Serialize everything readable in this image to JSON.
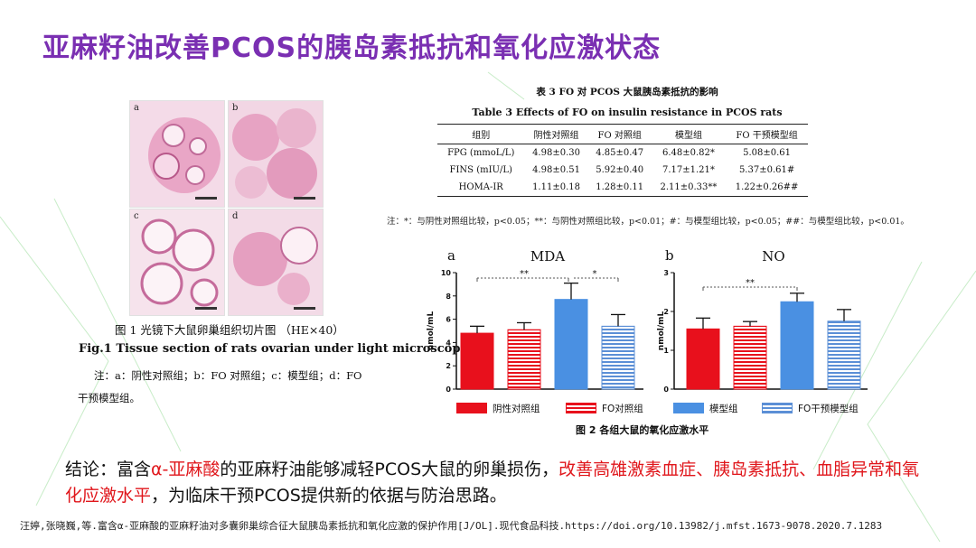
{
  "title": "亚麻籽油改善PCOS的胰岛素抵抗和氧化应激状态",
  "figure1": {
    "panel_labels": [
      "a",
      "b",
      "c",
      "d"
    ],
    "caption_cn": "图 1 光镜下大鼠卵巢组织切片图 （HE×40）",
    "caption_en": "Fig.1 Tissue section of rats ovarian under light microscope",
    "note_line1": "注：a：阴性对照组；b：FO 对照组；c：模型组；d：FO",
    "note_line2": "干预模型组。"
  },
  "table3": {
    "title_cn": "表 3 FO 对 PCOS 大鼠胰岛素抵抗的影响",
    "title_en": "Table 3 Effects of FO on insulin resistance in PCOS rats",
    "headers": [
      "组别",
      "阴性对照组",
      "FO 对照组",
      "模型组",
      "FO 干预模型组"
    ],
    "rows": [
      {
        "label": "FPG (mmoL/L)",
        "c1": "4.98±0.30",
        "c2": "4.85±0.47",
        "c3": "6.48±0.82*",
        "c4": "5.08±0.61"
      },
      {
        "label": "FINS (mIU/L)",
        "c1": "4.98±0.51",
        "c2": "5.92±0.40",
        "c3": "7.17±1.21*",
        "c4": "5.37±0.61#"
      },
      {
        "label": "HOMA-IR",
        "c1": "1.11±0.18",
        "c2": "1.28±0.11",
        "c3": "2.11±0.33**",
        "c4": "1.22±0.26##"
      }
    ],
    "note": "注：*：与阴性对照组比较，p<0.05；**：与阴性对照组比较，p<0.01；#：与模型组比较，p<0.05；##：与模型组比较，p<0.01。"
  },
  "chart_data": [
    {
      "type": "bar",
      "panel_label": "a",
      "title": "MDA",
      "ylabel": "nmol/mL",
      "ylim": [
        0,
        10
      ],
      "yticks": [
        "0",
        "2",
        "4",
        "6",
        "8",
        "10"
      ],
      "categories": [
        "阴性对照组",
        "FO对照组",
        "模型组",
        "FO干预模型组"
      ],
      "values": [
        4.8,
        5.1,
        7.7,
        5.4
      ],
      "errors": [
        0.6,
        0.6,
        1.4,
        1.0
      ],
      "significance": [
        "**",
        "*"
      ]
    },
    {
      "type": "bar",
      "panel_label": "b",
      "title": "NO",
      "ylabel": "nmol/mL",
      "ylim": [
        0,
        3
      ],
      "yticks": [
        "0",
        "1",
        "2",
        "3"
      ],
      "categories": [
        "阴性对照组",
        "FO对照组",
        "模型组",
        "FO干预模型组"
      ],
      "values": [
        1.55,
        1.62,
        2.25,
        1.75
      ],
      "errors": [
        0.28,
        0.12,
        0.22,
        0.3
      ],
      "significance": [
        "**"
      ]
    }
  ],
  "legend": [
    "阴性对照组",
    "FO对照组",
    "模型组",
    "FO干预模型组"
  ],
  "figure2_caption": "图 2 各组大鼠的氧化应激水平",
  "colors": {
    "title": "#7a2fb2",
    "neg_ctrl": "#e8101c",
    "fo_ctrl": "#e8101c",
    "model": "#4a90e2",
    "fo_model": "#5b8fd6",
    "highlight": "#e0161b"
  },
  "conclusion": {
    "part1": "结论：富含",
    "highlight1": "α-亚麻酸",
    "part2": "的亚麻籽油能够减轻PCOS大鼠的卵巢损伤，",
    "highlight2": "改善高雄激素血症、胰岛素抵抗、血脂异常和氧化应激水平",
    "part3": "，为临床干预PCOS提供新的依据与防治思路。"
  },
  "citation": "汪婷,张晓巍,等.富含α-亚麻酸的亚麻籽油对多囊卵巢综合征大鼠胰岛素抵抗和氧化应激的保护作用[J/OL].现代食品科技.https://doi.org/10.13982/j.mfst.1673-9078.2020.7.1283"
}
